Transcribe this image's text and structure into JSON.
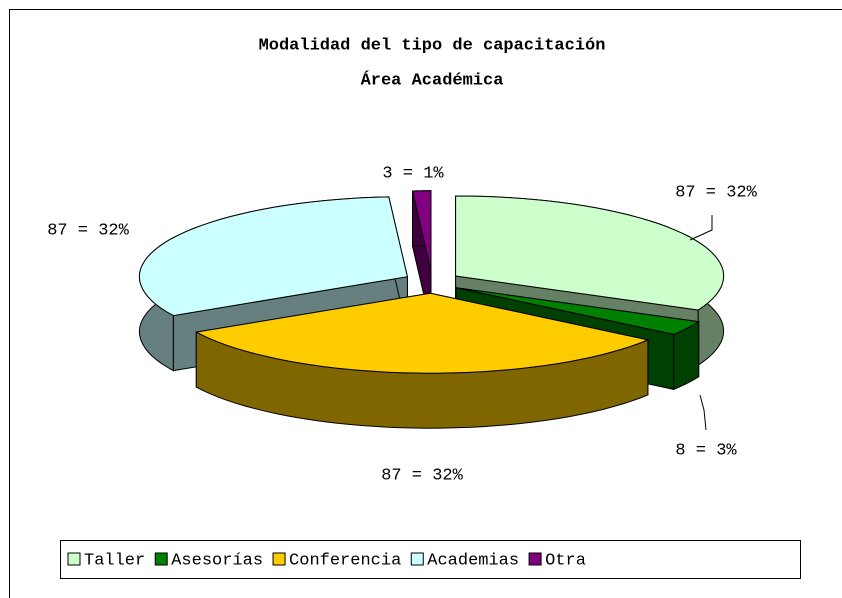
{
  "chart_data": {
    "type": "pie3d",
    "title": "Modalidad del tipo de capacitación",
    "subtitle": "Área Académica",
    "categories": [
      "Taller",
      "Asesorías",
      "Conferencia",
      "Academias",
      "Otra"
    ],
    "values": [
      87,
      8,
      87,
      87,
      3
    ],
    "value_labels": [
      "87 = 32%",
      "8 = 3%",
      "87 = 32%",
      "87 = 32%",
      "3 = 1%"
    ],
    "colors": [
      "#ccffcc",
      "#008000",
      "#ffcc00",
      "#ccffff",
      "#800080"
    ],
    "legend": "bottom"
  }
}
